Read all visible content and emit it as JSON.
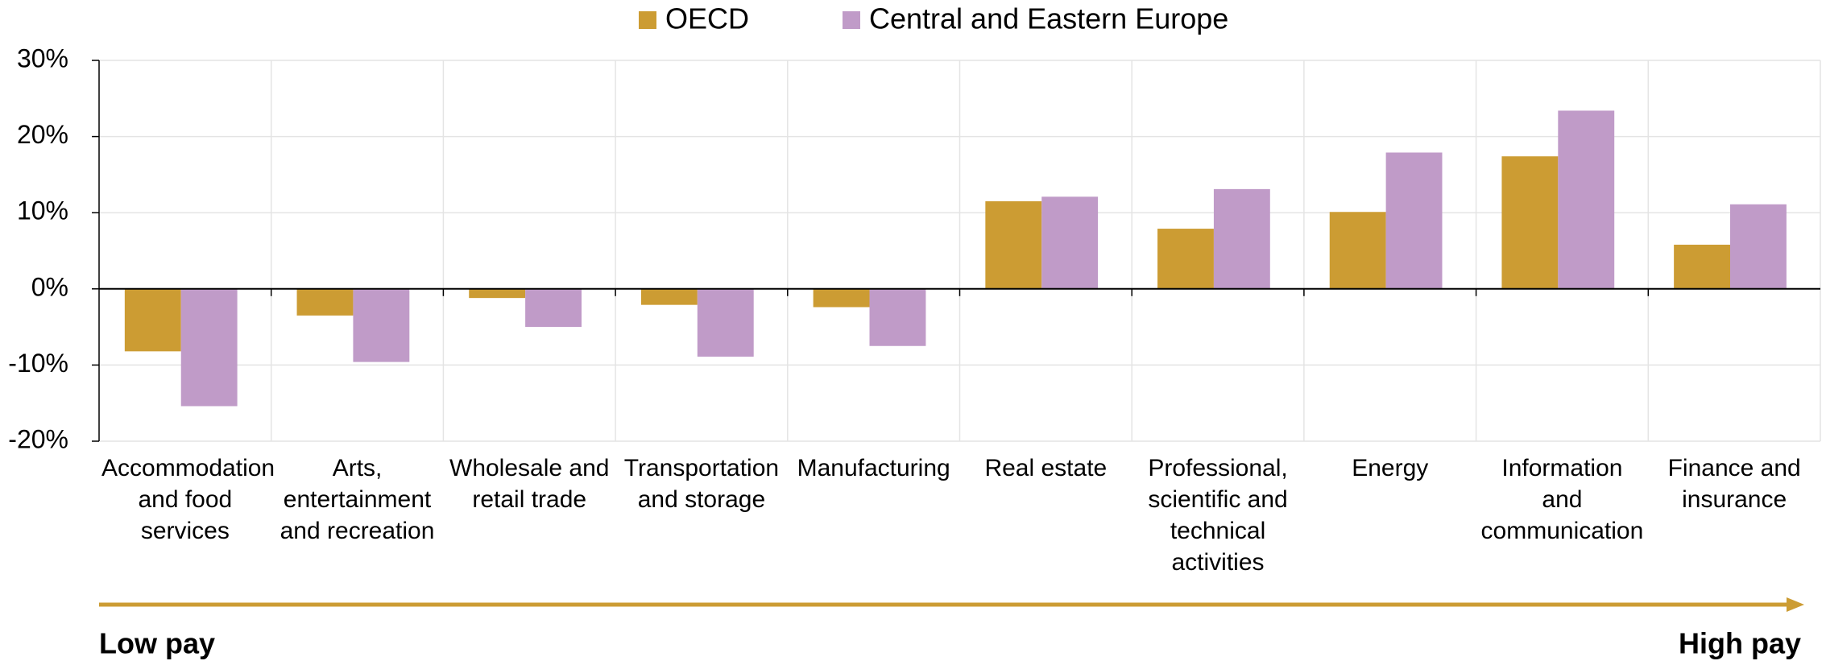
{
  "chart_data": {
    "type": "bar",
    "categories": [
      "Accommodation and food services",
      "Arts, entertainment and recreation",
      "Wholesale and retail trade",
      "Transportation and storage",
      "Manufacturing",
      "Real estate",
      "Professional, scientific and technical activities",
      "Energy",
      "Information and communication",
      "Finance and insurance"
    ],
    "series": [
      {
        "name": "OECD",
        "color": "#cc9c33",
        "values": [
          -8.2,
          -3.5,
          -1.2,
          -2.1,
          -2.4,
          11.5,
          7.9,
          10.1,
          17.4,
          5.8
        ]
      },
      {
        "name": "Central and Eastern Europe",
        "color": "#c09bc8",
        "values": [
          -15.4,
          -9.6,
          -5.0,
          -8.9,
          -7.5,
          12.1,
          13.1,
          17.9,
          23.4,
          11.1
        ]
      }
    ],
    "ylim": [
      -20,
      30
    ],
    "yticks": [
      {
        "value": -20,
        "label": "-20%"
      },
      {
        "value": -10,
        "label": "-10%"
      },
      {
        "value": 0,
        "label": "0%"
      },
      {
        "value": 10,
        "label": "10%"
      },
      {
        "value": 20,
        "label": "20%"
      },
      {
        "value": 30,
        "label": "30%"
      }
    ],
    "grid": true,
    "legend": "top",
    "annotations": [
      "Low pay",
      "High pay"
    ]
  }
}
